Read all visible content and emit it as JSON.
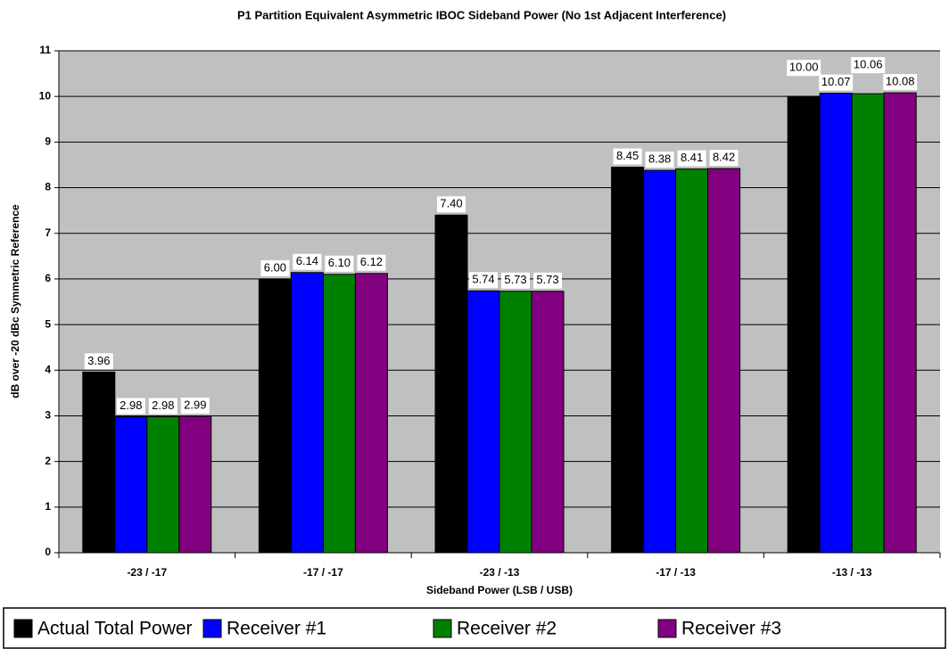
{
  "chart_data": {
    "type": "bar",
    "title": "P1 Partition Equivalent Asymmetric IBOC Sideband Power (No 1st Adjacent Interference)",
    "x_label": "Sideband Power (LSB / USB)",
    "y_label": "dB over -20 dBc Symmetric Reference",
    "categories": [
      "-23 / -17",
      "-17 / -17",
      "-23 / -13",
      "-17 / -13",
      "-13 / -13"
    ],
    "series": [
      {
        "name": "Actual Total Power",
        "color": "#000000",
        "values": [
          3.96,
          6,
          7.4,
          8.45,
          10
        ],
        "value_labels": [
          "3.96",
          "6.00",
          "7.40",
          "8.45",
          "10.00"
        ]
      },
      {
        "name": "Receiver #1",
        "color": "#0000ff",
        "values": [
          2.98,
          6.14,
          5.74,
          8.38,
          10.07
        ],
        "value_labels": [
          "2.98",
          "6.14",
          "5.74",
          "8.38",
          "10.07"
        ]
      },
      {
        "name": "Receiver #2",
        "color": "#008000",
        "values": [
          2.98,
          6.1,
          5.73,
          8.41,
          10.06
        ],
        "value_labels": [
          "2.98",
          "6.10",
          "5.73",
          "8.41",
          "10.06"
        ]
      },
      {
        "name": "Receiver #3",
        "color": "#800080",
        "values": [
          2.99,
          6.12,
          5.73,
          8.42,
          10.08
        ],
        "value_labels": [
          "2.99",
          "6.12",
          "5.73",
          "8.42",
          "10.08"
        ]
      }
    ],
    "ylim": [
      0,
      11
    ],
    "yticks": [
      0,
      1,
      2,
      3,
      4,
      5,
      6,
      7,
      8,
      9,
      10,
      11
    ],
    "grid": true,
    "legend": "bottom",
    "plot_background": "#c0c0c0"
  }
}
